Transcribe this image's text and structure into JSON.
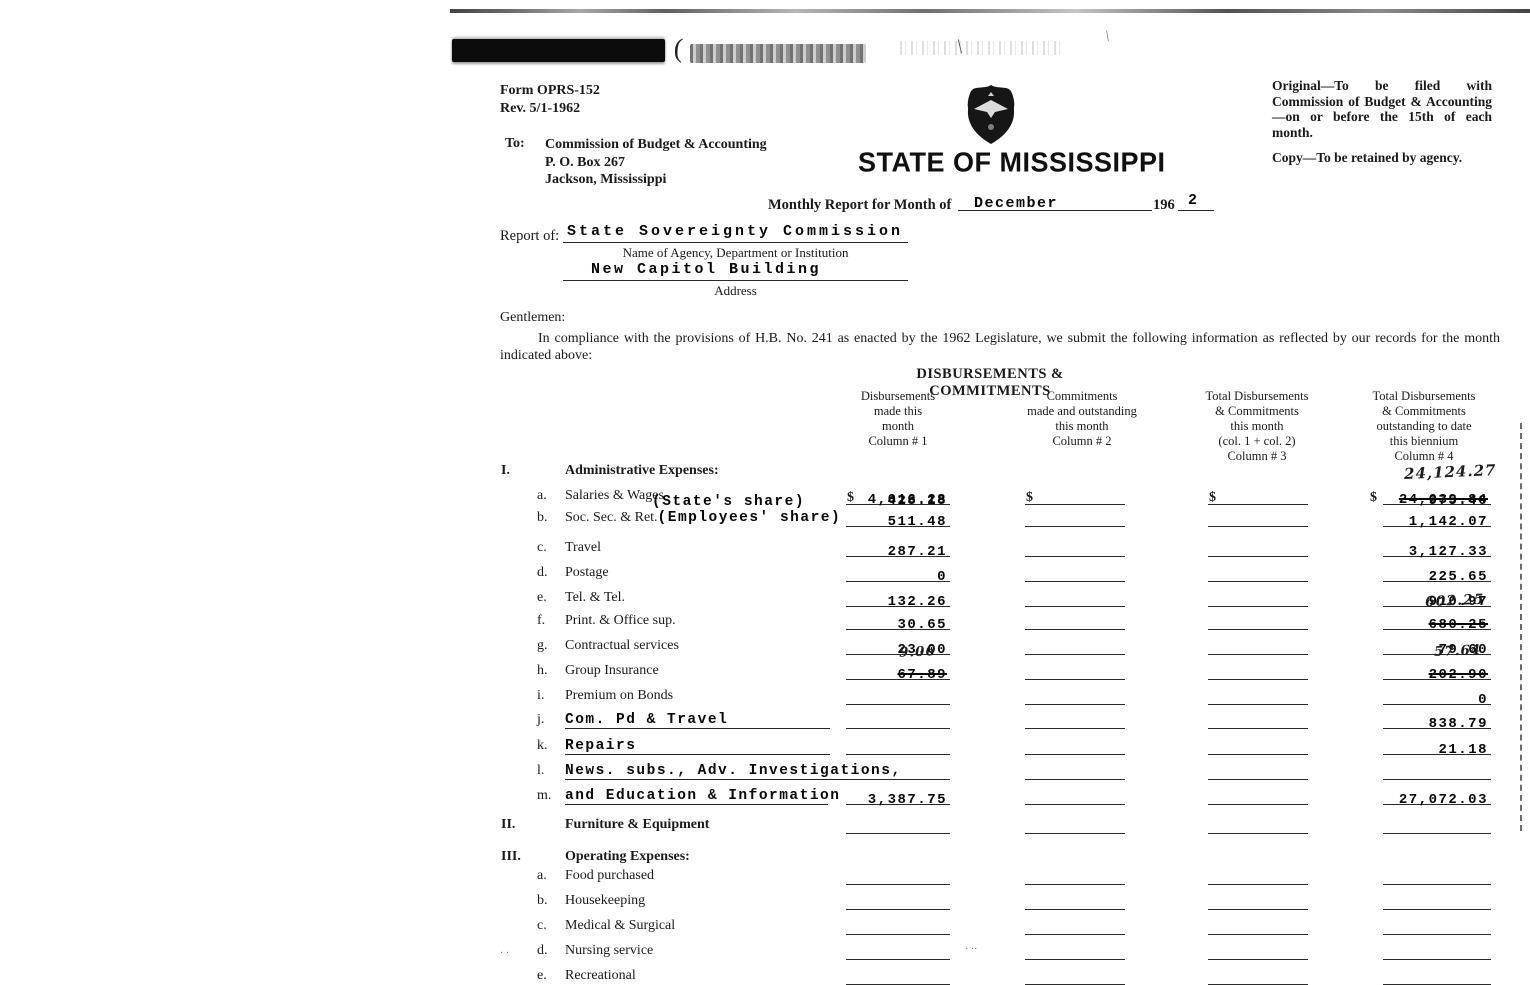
{
  "colors": {
    "ink": "#1a1a1a",
    "paper": "#ffffff"
  },
  "header": {
    "form_number": "Form OPRS-152",
    "revision": "Rev. 5/1-1962",
    "to_label": "To:",
    "to_lines": [
      "Commission of Budget & Accounting",
      "P. O. Box 267",
      "Jackson, Mississippi"
    ],
    "right_note_1": "Original—To be filed with Commission of Budget & Accounting—on or before the 15th of each month.",
    "right_note_2": "Copy—To be retained by agency.",
    "seal_icon": "state-seal-eagle",
    "state_title": "STATE OF MISSISSIPPI",
    "month_line_prefix": "Monthly Report for Month of",
    "month_value": "December",
    "year_prefix": "196",
    "year_value": "2",
    "report_of_label": "Report of:",
    "agency_value": "State Sovereignty Commission",
    "agency_caption": "Name of Agency, Department or Institution",
    "address_value": "New Capitol Building",
    "address_caption": "Address",
    "salutation": "Gentlemen:",
    "body_paragraph": "In compliance with the provisions of H.B. No. 241 as enacted by the 1962 Legislature, we submit the following information as reflected by our records for the month indicated above:"
  },
  "table": {
    "title": "DISBURSEMENTS & COMMITMENTS",
    "columns": [
      {
        "lines": [
          "Disbursements",
          "made this",
          "month",
          "Column # 1"
        ]
      },
      {
        "lines": [
          "Commitments",
          "made and outstanding",
          "this month",
          "Column # 2"
        ]
      },
      {
        "lines": [
          "Total Disbursements",
          "& Commitments",
          "this month",
          "(col. 1 + col. 2)",
          "Column # 3"
        ]
      },
      {
        "lines": [
          "Total Disbursements",
          "& Commitments",
          "outstanding to date",
          "this biennium",
          "Column # 4"
        ]
      }
    ],
    "rows": [
      {
        "num": "I.",
        "label": "Administrative Expenses:",
        "style": "section",
        "cols": {}
      },
      {
        "letter": "a.",
        "label": "Salaries & Wages",
        "style": "printed",
        "cols": {
          "col1": {
            "dollar": true,
            "value": "4,016.28"
          },
          "col2": {
            "dollar": true
          },
          "col3": {
            "dollar": true
          },
          "col4": {
            "dollar": true,
            "value": "24,039.84",
            "struck": true,
            "handwritten": "24,124.27"
          }
        }
      },
      {
        "typed_label": "(State's share)",
        "style": "sub",
        "cols": {
          "col1": {
            "value": "428.18",
            "noline": true
          },
          "col4": {
            "value": "975.46",
            "noline": true
          }
        }
      },
      {
        "letter": "b.",
        "label": "Soc. Sec. & Ret.",
        "typed_label": "(Employees' share)",
        "style": "printed",
        "cols": {
          "col1": {
            "value": "511.48"
          },
          "col2": {},
          "col3": {},
          "col4": {
            "value": "1,142.07"
          }
        }
      },
      {
        "letter": "c.",
        "label": "Travel",
        "style": "printed",
        "cols": {
          "col1": {
            "value": "287.21"
          },
          "col2": {},
          "col3": {},
          "col4": {
            "value": "3,127.33"
          }
        }
      },
      {
        "letter": "d.",
        "label": "Postage",
        "style": "printed",
        "cols": {
          "col1": {
            "value": "0"
          },
          "col2": {},
          "col3": {},
          "col4": {
            "value": "225.65"
          }
        }
      },
      {
        "letter": "e.",
        "label": "Tel. & Tel.",
        "style": "printed",
        "cols": {
          "col1": {
            "value": "132.26"
          },
          "col2": {},
          "col3": {},
          "col4": {
            "value": "910.97"
          }
        }
      },
      {
        "letter": "f.",
        "label": "Print. & Office sup.",
        "style": "printed",
        "cols": {
          "col1": {
            "value": "30.65"
          },
          "col2": {},
          "col3": {},
          "col4": {
            "value": "680.25",
            "struck": true,
            "handwritten": "602.25"
          }
        }
      },
      {
        "letter": "g.",
        "label": "Contractual services",
        "style": "printed",
        "cols": {
          "col1": {
            "value": "23.00"
          },
          "col2": {},
          "col3": {},
          "col4": {
            "value": "79.60"
          }
        }
      },
      {
        "letter": "h.",
        "label": "Group Insurance",
        "style": "printed",
        "cols": {
          "col1": {
            "value": "67.89",
            "struck": true,
            "handwritten": "9.06"
          },
          "col2": {},
          "col3": {},
          "col4": {
            "value": "202.90",
            "struck": true,
            "handwritten": "57.64"
          }
        }
      },
      {
        "letter": "i.",
        "label": "Premium on Bonds",
        "style": "printed",
        "cols": {
          "col1": {},
          "col2": {},
          "col3": {},
          "col4": {
            "value": "0"
          }
        }
      },
      {
        "letter": "j.",
        "label": "Com. Pd & Travel",
        "style": "typedline",
        "cols": {
          "col1": {},
          "col2": {},
          "col3": {},
          "col4": {
            "value": "838.79"
          }
        }
      },
      {
        "letter": "k.",
        "label": "Repairs",
        "style": "typedline",
        "cols": {
          "col1": {},
          "col2": {},
          "col3": {},
          "col4": {
            "value": "21.18"
          }
        }
      },
      {
        "letter": "l.",
        "label": "News. subs., Adv. Investigations,",
        "style": "typedline",
        "cols": {
          "col1": {},
          "col2": {},
          "col3": {},
          "col4": {}
        }
      },
      {
        "letter": "m.",
        "label": "and Education & Information",
        "style": "typedline",
        "cols": {
          "col1": {
            "value": "3,387.75"
          },
          "col2": {},
          "col3": {},
          "col4": {
            "value": "27,072.03"
          }
        }
      },
      {
        "num": "II.",
        "label": "Furniture & Equipment",
        "style": "section",
        "cols": {
          "col1": {},
          "col2": {},
          "col3": {},
          "col4": {}
        }
      },
      {
        "num": "III.",
        "label": "Operating Expenses:",
        "style": "section",
        "cols": {}
      },
      {
        "letter": "a.",
        "label": "Food purchased",
        "style": "printed",
        "cols": {
          "col1": {},
          "col2": {},
          "col3": {},
          "col4": {}
        }
      },
      {
        "letter": "b.",
        "label": "Housekeeping",
        "style": "printed",
        "cols": {
          "col1": {},
          "col2": {},
          "col3": {},
          "col4": {}
        }
      },
      {
        "letter": "c.",
        "label": "Medical & Surgical",
        "style": "printed",
        "cols": {
          "col1": {},
          "col2": {},
          "col3": {},
          "col4": {}
        }
      },
      {
        "letter": "d.",
        "label": "Nursing service",
        "style": "printed",
        "cols": {
          "col1": {},
          "col2": {},
          "col3": {},
          "col4": {}
        }
      },
      {
        "letter": "e.",
        "label": "Recreational",
        "style": "printed",
        "cols": {
          "col1": {},
          "col2": {},
          "col3": {},
          "col4": {}
        }
      }
    ]
  }
}
